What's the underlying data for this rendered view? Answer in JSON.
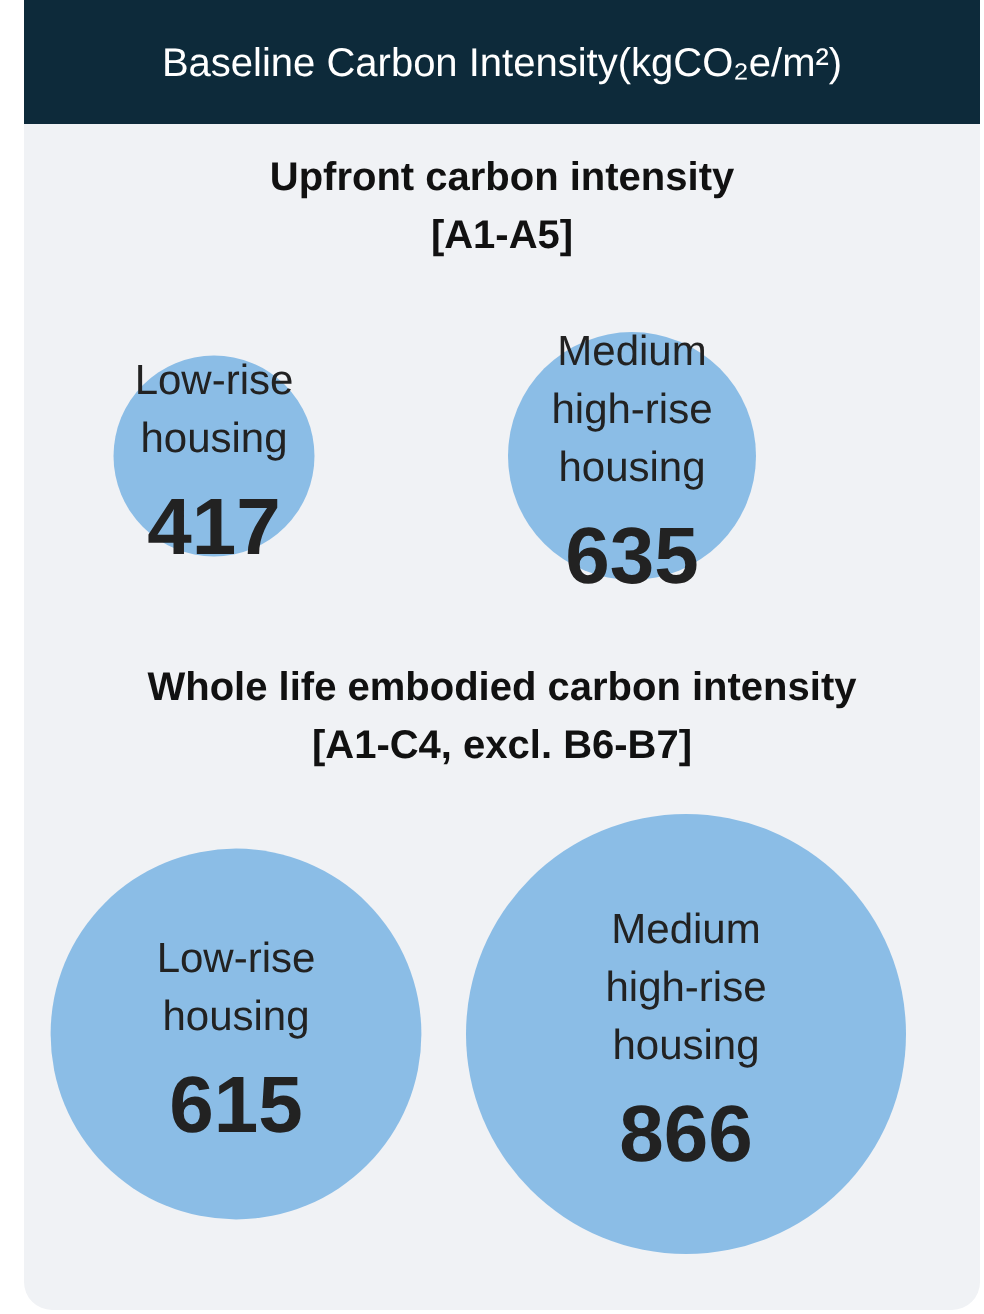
{
  "chart_data": [
    {
      "type": "other",
      "title": "Baseline Carbon Intensity(kgCO₂e/m²)",
      "subtitle": "Upfront carbon intensity [A1-A5]",
      "categories": [
        "Low-rise housing",
        "Medium high-rise housing"
      ],
      "values": [
        417,
        635
      ],
      "colors": [
        "#8bbde6",
        "#8bbde6"
      ],
      "data_labels": true
    },
    {
      "type": "other",
      "title": "Whole life embodied carbon intensity [A1-C4, excl. B6-B7]",
      "categories": [
        "Low-rise housing",
        "Medium high-rise housing"
      ],
      "values": [
        615,
        866
      ],
      "colors": [
        "#8bbde6",
        "#8bbde6"
      ],
      "data_labels": true
    }
  ]
}
